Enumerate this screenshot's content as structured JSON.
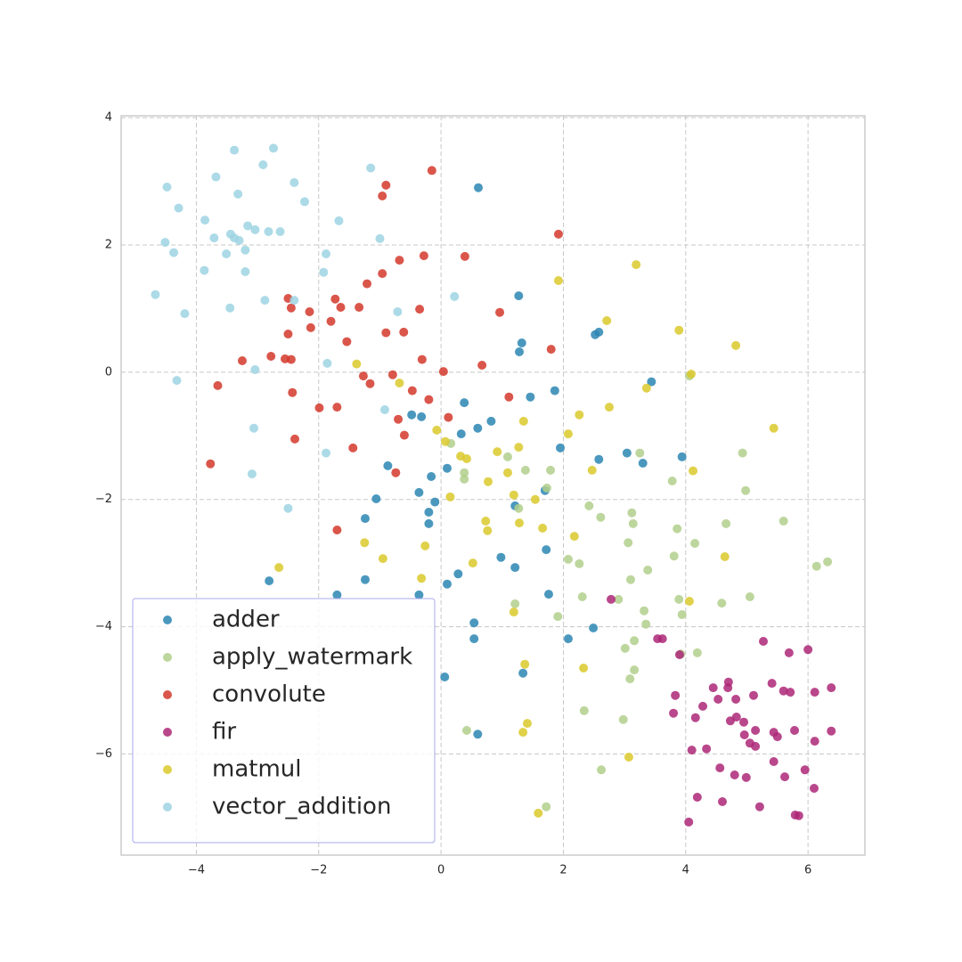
{
  "chart_data": {
    "type": "scatter",
    "xlim": [
      -5.23,
      6.93
    ],
    "ylim": [
      -7.59,
      4.03
    ],
    "xticks": [
      {
        "value": -4,
        "label": "−4"
      },
      {
        "value": -2,
        "label": "−2"
      },
      0,
      2,
      4,
      6
    ],
    "yticks": [
      {
        "value": -6,
        "label": "−6"
      },
      {
        "value": -4,
        "label": "−4"
      },
      {
        "value": -2,
        "label": "−2"
      },
      0,
      2,
      4
    ],
    "grid": true,
    "legend": "lower left",
    "series": [
      {
        "name": "adder",
        "color": "#2c86b3",
        "x": [
          0.61,
          1.27,
          1.32,
          1.28,
          2.52,
          2.58,
          3.44,
          0.38,
          1.46,
          1.86,
          -0.87,
          -0.48,
          -0.32,
          0.33,
          0.6,
          0.82,
          0.1,
          -0.16,
          -1.06,
          -0.36,
          -0.2,
          -0.1,
          -1.24,
          1.95,
          2.58,
          3.04,
          3.3,
          3.94,
          1.7,
          1.21,
          1.72,
          0.98,
          1.21,
          1.76,
          0.28,
          0.1,
          -0.36,
          -1.7,
          -1.24,
          -2.81,
          0.54,
          0.54,
          1.34,
          2.08,
          2.49,
          0.06,
          0.6,
          -0.2
        ],
        "values": [
          2.9,
          1.2,
          0.46,
          0.32,
          0.59,
          0.63,
          -0.15,
          -0.48,
          -0.39,
          -0.29,
          -1.47,
          -0.67,
          -0.7,
          -0.97,
          -0.88,
          -0.77,
          -1.51,
          -1.64,
          -1.99,
          -1.89,
          -2.2,
          -2.04,
          -2.3,
          -1.19,
          -1.37,
          -1.27,
          -1.43,
          -1.33,
          -1.86,
          -2.1,
          -2.79,
          -2.91,
          -3.07,
          -3.49,
          -3.17,
          -3.33,
          -3.5,
          -3.5,
          -3.26,
          -3.28,
          -3.94,
          -4.19,
          -4.73,
          -4.19,
          -4.02,
          -4.79,
          -5.69,
          -2.38
        ]
      },
      {
        "name": "apply_watermark",
        "color": "#b2cf8c",
        "x": [
          4.06,
          4.93,
          4.98,
          5.6,
          4.66,
          3.25,
          3.78,
          3.12,
          3.14,
          2.61,
          2.42,
          3.06,
          4.15,
          3.86,
          3.81,
          3.89,
          3.94,
          4.59,
          5.05,
          6.14,
          6.32,
          3.32,
          3.38,
          3.1,
          2.26,
          2.08,
          2.31,
          2.9,
          3.35,
          3.16,
          3.01,
          4.19,
          3.92,
          3.16,
          3.09,
          1.91,
          1.21,
          2.34,
          2.98,
          2.62,
          1.72,
          0.42,
          1.09,
          1.38,
          1.79,
          1.73,
          0.38,
          0.38,
          0.16,
          1.27
        ],
        "values": [
          -0.06,
          -1.27,
          -1.86,
          -2.34,
          -2.38,
          -1.27,
          -1.71,
          -2.21,
          -2.38,
          -2.28,
          -2.1,
          -2.68,
          -2.69,
          -2.46,
          -2.89,
          -3.57,
          -3.81,
          -3.63,
          -3.53,
          -3.05,
          -2.98,
          -3.75,
          -3.11,
          -3.26,
          -3.01,
          -2.94,
          -3.53,
          -3.57,
          -3.96,
          -4.22,
          -4.34,
          -4.41,
          -4.43,
          -4.68,
          -4.82,
          -3.84,
          -3.64,
          -5.32,
          -5.46,
          -6.25,
          -6.83,
          -5.63,
          -1.33,
          -1.54,
          -1.54,
          -1.82,
          -1.58,
          -1.68,
          -1.12,
          -2.14
        ]
      },
      {
        "name": "convolute",
        "color": "#d3382c",
        "x": [
          -0.15,
          -0.9,
          -0.96,
          1.92,
          -0.28,
          -0.68,
          0.39,
          -0.96,
          -1.21,
          -2.5,
          -1.73,
          -1.34,
          -2.45,
          -1.64,
          -2.15,
          -0.35,
          0.96,
          -2.13,
          -1.8,
          -1.54,
          -0.9,
          -0.61,
          -2.5,
          1.8,
          -3.25,
          -2.78,
          -2.55,
          -0.31,
          -2.45,
          0.67,
          0.04,
          -1.27,
          -0.79,
          -1.16,
          -3.65,
          -0.47,
          -2.43,
          1.11,
          -0.2,
          -1.99,
          -1.7,
          0.12,
          -0.7,
          -0.6,
          -2.39,
          -1.44,
          -3.77,
          -0.74,
          -1.7
        ],
        "values": [
          3.17,
          2.94,
          2.77,
          2.17,
          1.83,
          1.76,
          1.82,
          1.55,
          1.39,
          1.16,
          1.15,
          1.02,
          1.01,
          1.02,
          0.95,
          0.99,
          0.94,
          0.7,
          0.8,
          0.48,
          0.62,
          0.63,
          0.6,
          0.36,
          0.18,
          0.25,
          0.21,
          0.2,
          0.2,
          0.11,
          0.01,
          -0.06,
          -0.04,
          -0.18,
          -0.21,
          -0.29,
          -0.32,
          -0.39,
          -0.43,
          -0.56,
          -0.55,
          -0.71,
          -0.74,
          -0.99,
          -1.05,
          -1.19,
          -1.44,
          -1.58,
          -2.48
        ]
      },
      {
        "name": "fir",
        "color": "#ad2777",
        "x": [
          2.78,
          3.54,
          3.62,
          3.9,
          5.27,
          6.0,
          5.69,
          4.45,
          4.7,
          4.28,
          3.83,
          4.82,
          5.11,
          4.69,
          4.53,
          5.41,
          5.6,
          5.71,
          6.11,
          6.38,
          3.8,
          4.16,
          4.73,
          4.83,
          4.95,
          5.14,
          5.44,
          5.5,
          5.78,
          6.38,
          6.11,
          4.96,
          5.05,
          5.14,
          4.1,
          4.34,
          4.56,
          4.8,
          4.99,
          5.44,
          5.62,
          5.95,
          6.1,
          4.19,
          4.6,
          5.21,
          5.79,
          5.85,
          4.05
        ],
        "values": [
          -3.57,
          -4.19,
          -4.19,
          -4.44,
          -4.23,
          -4.36,
          -4.41,
          -4.96,
          -4.87,
          -5.25,
          -5.08,
          -5.14,
          -5.08,
          -4.96,
          -5.14,
          -4.89,
          -5.01,
          -5.03,
          -5.03,
          -4.96,
          -5.36,
          -5.43,
          -5.48,
          -5.42,
          -5.5,
          -5.63,
          -5.66,
          -5.73,
          -5.63,
          -5.64,
          -5.8,
          -5.7,
          -5.83,
          -5.88,
          -5.94,
          -5.92,
          -6.22,
          -6.33,
          -6.37,
          -6.12,
          -6.36,
          -6.25,
          -6.54,
          -6.68,
          -6.75,
          -6.83,
          -6.96,
          -6.97,
          -7.07
        ]
      },
      {
        "name": "matmul",
        "color": "#dbc92b",
        "x": [
          3.19,
          1.92,
          2.71,
          3.89,
          4.82,
          4.09,
          -1.38,
          3.36,
          -0.68,
          2.26,
          2.75,
          1.35,
          -0.07,
          2.08,
          0.07,
          0.42,
          5.44,
          0.92,
          1.27,
          0.32,
          1.09,
          2.47,
          4.12,
          0.77,
          1.19,
          1.54,
          0.15,
          0.73,
          1.66,
          0.76,
          1.28,
          2.18,
          -1.25,
          -0.26,
          -0.95,
          0.52,
          4.64,
          -0.32,
          1.19,
          4.06,
          1.37,
          2.33,
          1.41,
          1.34,
          3.07,
          1.59,
          -2.65
        ],
        "values": [
          1.69,
          1.44,
          0.81,
          0.66,
          0.42,
          -0.03,
          0.13,
          -0.25,
          -0.17,
          -0.67,
          -0.55,
          -0.77,
          -0.91,
          -0.97,
          -1.09,
          -1.36,
          -0.88,
          -1.25,
          -1.18,
          -1.32,
          -1.58,
          -1.54,
          -1.55,
          -1.72,
          -1.93,
          -2.0,
          -1.96,
          -2.34,
          -2.45,
          -2.49,
          -2.37,
          -2.58,
          -2.68,
          -2.73,
          -2.93,
          -3.0,
          -2.9,
          -3.24,
          -3.77,
          -3.6,
          -4.59,
          -4.65,
          -5.52,
          -5.66,
          -6.05,
          -6.93,
          -3.07
        ]
      },
      {
        "name": "vector_addition",
        "color": "#9dd4e3",
        "x": [
          -3.38,
          -2.74,
          -1.15,
          -4.48,
          -3.68,
          -2.91,
          -2.4,
          -3.32,
          -4.29,
          -3.86,
          -2.23,
          -1.67,
          -3.16,
          -3.04,
          -2.82,
          -2.63,
          -3.71,
          -3.44,
          -3.38,
          -3.3,
          -4.51,
          -1.0,
          -4.37,
          -3.2,
          -3.51,
          -1.88,
          -3.87,
          -3.2,
          -1.92,
          0.22,
          -4.67,
          -2.88,
          -2.4,
          -3.45,
          -4.19,
          -0.71,
          -1.86,
          -3.04,
          -4.32,
          -0.92,
          -3.06,
          -1.88,
          -3.09,
          -2.5
        ],
        "values": [
          3.49,
          3.52,
          3.21,
          2.91,
          3.07,
          3.26,
          2.98,
          2.8,
          2.58,
          2.39,
          2.68,
          2.38,
          2.3,
          2.24,
          2.21,
          2.21,
          2.11,
          2.17,
          2.11,
          2.07,
          2.04,
          2.1,
          1.88,
          1.92,
          1.86,
          1.86,
          1.6,
          1.58,
          1.57,
          1.19,
          1.22,
          1.13,
          1.13,
          1.01,
          0.92,
          0.95,
          0.14,
          0.04,
          -0.13,
          -0.59,
          -0.88,
          -1.27,
          -1.6,
          -2.14
        ]
      }
    ]
  }
}
